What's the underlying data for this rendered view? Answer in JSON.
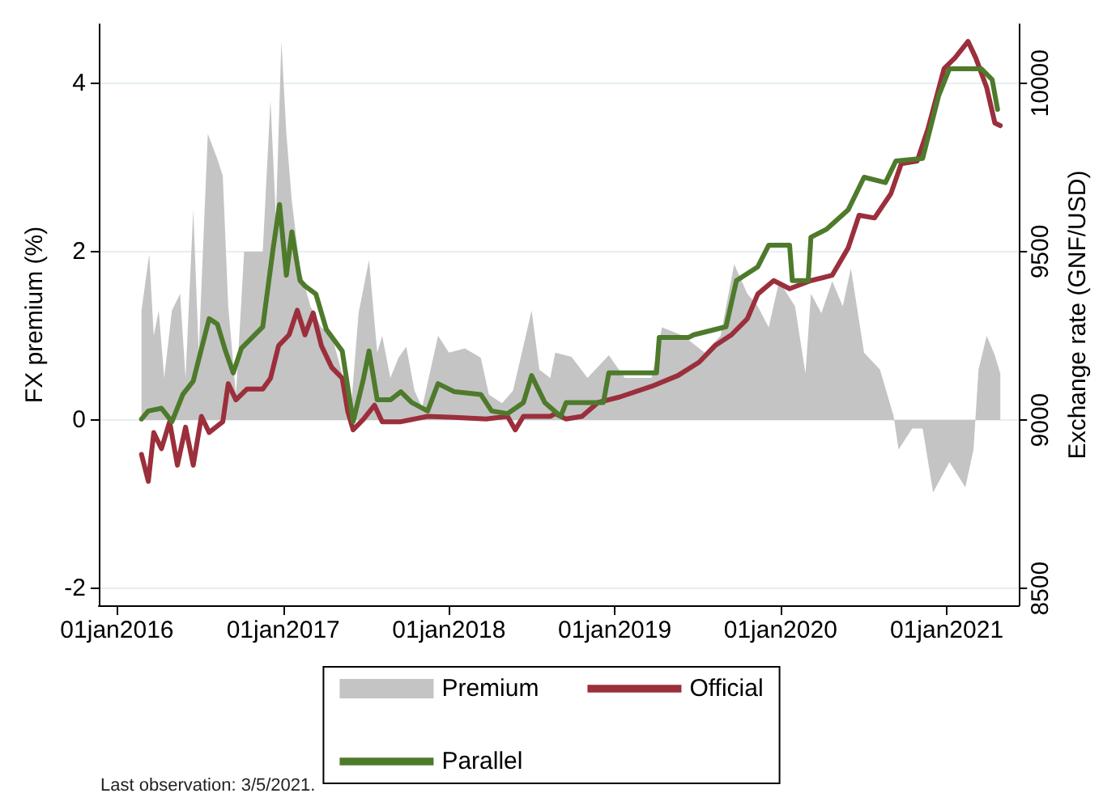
{
  "chart_data": {
    "type": "line",
    "ylabel": "FX premium (%)",
    "y2label": "Exchange rate (GNF/USD)",
    "xlim": [
      "2015-11-22",
      "2021-06-09"
    ],
    "xticks": [
      {
        "value": "2016-01-01",
        "label": "01jan2016"
      },
      {
        "value": "2017-01-01",
        "label": "01jan2017"
      },
      {
        "value": "2018-01-01",
        "label": "01jan2018"
      },
      {
        "value": "2019-01-01",
        "label": "01jan2019"
      },
      {
        "value": "2020-01-01",
        "label": "01jan2020"
      },
      {
        "value": "2021-01-01",
        "label": "01jan2021"
      }
    ],
    "ylim": [
      -2.2,
      4.7
    ],
    "yticks": [
      -2,
      0,
      2,
      4
    ],
    "y2lim": [
      8450,
      10175
    ],
    "y2ticks": [
      8500,
      9000,
      9500,
      10000
    ],
    "grid": "y",
    "legend": "bottom",
    "marker": "none",
    "line_style": "solid",
    "annotations": [
      "Last observation: 3/5/2021."
    ],
    "series": [
      {
        "name": "Premium",
        "type": "area",
        "color": "#c4c4c4",
        "x": [
          "2016-02-24",
          "2016-03-12",
          "2016-03-22",
          "2016-04-02",
          "2016-04-14",
          "2016-05-01",
          "2016-05-19",
          "2016-05-31",
          "2016-06-17",
          "2016-06-29",
          "2016-07-19",
          "2016-08-09",
          "2016-08-21",
          "2016-09-02",
          "2016-09-19",
          "2016-10-07",
          "2016-11-17",
          "2016-12-04",
          "2016-12-16",
          "2016-12-28",
          "2017-01-08",
          "2017-01-20",
          "2017-02-07",
          "2017-03-02",
          "2017-03-26",
          "2017-04-18",
          "2017-05-11",
          "2017-05-29",
          "2017-06-16",
          "2017-07-09",
          "2017-07-27",
          "2017-08-07",
          "2017-08-25",
          "2017-09-12",
          "2017-09-29",
          "2017-10-17",
          "2017-11-03",
          "2017-12-08",
          "2018-01-01",
          "2018-02-05",
          "2018-03-12",
          "2018-03-30",
          "2018-04-28",
          "2018-05-22",
          "2018-07-02",
          "2018-07-19",
          "2018-08-12",
          "2018-08-23",
          "2018-09-28",
          "2018-11-02",
          "2018-12-19",
          "2019-01-23",
          "2019-03-23",
          "2019-04-15",
          "2019-06-01",
          "2019-07-18",
          "2019-08-22",
          "2019-09-21",
          "2019-10-20",
          "2019-11-12",
          "2019-12-06",
          "2019-12-29",
          "2020-02-02",
          "2020-02-25",
          "2020-03-08",
          "2020-03-31",
          "2020-04-24",
          "2020-05-17",
          "2020-06-04",
          "2020-07-03",
          "2020-08-07",
          "2020-09-06",
          "2020-09-17",
          "2020-10-17",
          "2020-11-09",
          "2020-12-02",
          "2021-01-07",
          "2021-02-11",
          "2021-03-01",
          "2021-03-12",
          "2021-03-30",
          "2021-04-17",
          "2021-04-29"
        ],
        "values": [
          1.3,
          1.97,
          1.0,
          1.3,
          0.5,
          1.3,
          1.5,
          0.5,
          2.5,
          0.8,
          3.4,
          3.1,
          2.9,
          1.35,
          0.3,
          2.0,
          2.0,
          3.8,
          2.4,
          4.5,
          3.4,
          2.6,
          1.8,
          1.35,
          1.1,
          1.0,
          0.55,
          0.05,
          1.27,
          1.9,
          0.8,
          1.0,
          0.5,
          0.74,
          0.87,
          0.35,
          0.15,
          1.0,
          0.8,
          0.85,
          0.74,
          0.3,
          0.2,
          0.35,
          1.3,
          0.6,
          0.5,
          0.8,
          0.75,
          0.5,
          0.77,
          0.5,
          0.5,
          1.1,
          1.0,
          0.8,
          1.0,
          1.85,
          1.5,
          1.35,
          1.1,
          1.65,
          1.35,
          0.55,
          1.5,
          1.27,
          1.65,
          1.35,
          1.8,
          0.8,
          0.6,
          0.05,
          -0.35,
          -0.1,
          -0.1,
          -0.86,
          -0.5,
          -0.8,
          -0.35,
          0.6,
          1.0,
          0.77,
          0.55
        ]
      },
      {
        "name": "Official",
        "axis": "y2",
        "color": "#9b2f3c",
        "x": [
          "2016-02-24",
          "2016-03-10",
          "2016-03-22",
          "2016-04-08",
          "2016-04-26",
          "2016-05-13",
          "2016-05-31",
          "2016-06-17",
          "2016-07-05",
          "2016-07-22",
          "2016-08-21",
          "2016-09-02",
          "2016-09-19",
          "2016-10-13",
          "2016-11-17",
          "2016-12-04",
          "2016-12-22",
          "2017-01-14",
          "2017-02-01",
          "2017-02-18",
          "2017-03-08",
          "2017-03-26",
          "2017-04-18",
          "2017-05-11",
          "2017-05-23",
          "2017-06-04",
          "2017-06-27",
          "2017-07-21",
          "2017-08-07",
          "2017-09-17",
          "2017-11-15",
          "2018-01-13",
          "2018-03-24",
          "2018-05-10",
          "2018-05-27",
          "2018-06-14",
          "2018-08-12",
          "2018-08-23",
          "2018-09-16",
          "2018-10-21",
          "2018-11-25",
          "2019-01-11",
          "2019-03-23",
          "2019-05-20",
          "2019-07-06",
          "2019-08-10",
          "2019-09-15",
          "2019-10-20",
          "2019-11-12",
          "2019-12-17",
          "2020-01-21",
          "2020-03-08",
          "2020-04-24",
          "2020-05-29",
          "2020-06-22",
          "2020-07-26",
          "2020-08-31",
          "2020-09-23",
          "2020-10-28",
          "2020-11-21",
          "2020-12-26",
          "2021-01-19",
          "2021-02-17",
          "2021-03-06",
          "2021-03-30",
          "2021-04-17",
          "2021-04-29"
        ],
        "values": [
          8898,
          8818,
          8963,
          8915,
          8995,
          8866,
          8979,
          8866,
          9011,
          8963,
          8995,
          9108,
          9060,
          9092,
          9092,
          9124,
          9221,
          9253,
          9326,
          9253,
          9318,
          9221,
          9156,
          9124,
          9027,
          8971,
          9003,
          9044,
          8995,
          8995,
          9011,
          9008,
          9003,
          9011,
          8971,
          9011,
          9011,
          9019,
          9003,
          9011,
          9052,
          9068,
          9100,
          9132,
          9172,
          9221,
          9253,
          9301,
          9374,
          9414,
          9390,
          9414,
          9430,
          9511,
          9608,
          9600,
          9672,
          9761,
          9769,
          9866,
          10043,
          10075,
          10124,
          10075,
          9987,
          9882,
          9874
        ]
      },
      {
        "name": "Parallel",
        "axis": "y2",
        "color": "#4e7a2c",
        "x": [
          "2016-02-24",
          "2016-03-10",
          "2016-04-08",
          "2016-05-01",
          "2016-05-25",
          "2016-06-17",
          "2016-07-22",
          "2016-08-09",
          "2016-08-27",
          "2016-09-13",
          "2016-10-01",
          "2016-11-17",
          "2016-12-10",
          "2016-12-24",
          "2017-01-08",
          "2017-01-20",
          "2017-02-07",
          "2017-02-18",
          "2017-03-14",
          "2017-04-06",
          "2017-05-11",
          "2017-06-04",
          "2017-06-27",
          "2017-07-09",
          "2017-07-27",
          "2017-08-25",
          "2017-09-17",
          "2017-10-11",
          "2017-11-15",
          "2017-12-08",
          "2018-01-13",
          "2018-03-12",
          "2018-04-05",
          "2018-05-10",
          "2018-06-14",
          "2018-07-02",
          "2018-07-31",
          "2018-09-04",
          "2018-09-16",
          "2018-10-09",
          "2018-12-07",
          "2018-12-19",
          "2019-04-03",
          "2019-04-09",
          "2019-06-12",
          "2019-06-24",
          "2019-09-03",
          "2019-09-26",
          "2019-11-12",
          "2019-12-06",
          "2020-01-21",
          "2020-01-27",
          "2020-03-02",
          "2020-03-08",
          "2020-04-12",
          "2020-05-29",
          "2020-07-03",
          "2020-08-19",
          "2020-09-11",
          "2020-11-09",
          "2020-12-14",
          "2021-01-07",
          "2021-03-18",
          "2021-04-11",
          "2021-04-23"
        ],
        "values": [
          9003,
          9027,
          9035,
          8995,
          9076,
          9116,
          9301,
          9285,
          9205,
          9140,
          9213,
          9277,
          9511,
          9640,
          9430,
          9559,
          9414,
          9398,
          9374,
          9269,
          9205,
          8995,
          9124,
          9205,
          9060,
          9060,
          9084,
          9052,
          9027,
          9108,
          9084,
          9076,
          9027,
          9019,
          9052,
          9132,
          9052,
          9011,
          9052,
          9052,
          9052,
          9140,
          9140,
          9245,
          9245,
          9253,
          9277,
          9414,
          9455,
          9519,
          9519,
          9414,
          9414,
          9543,
          9567,
          9624,
          9721,
          9705,
          9769,
          9777,
          9962,
          10043,
          10043,
          10011,
          9922
        ]
      }
    ]
  }
}
